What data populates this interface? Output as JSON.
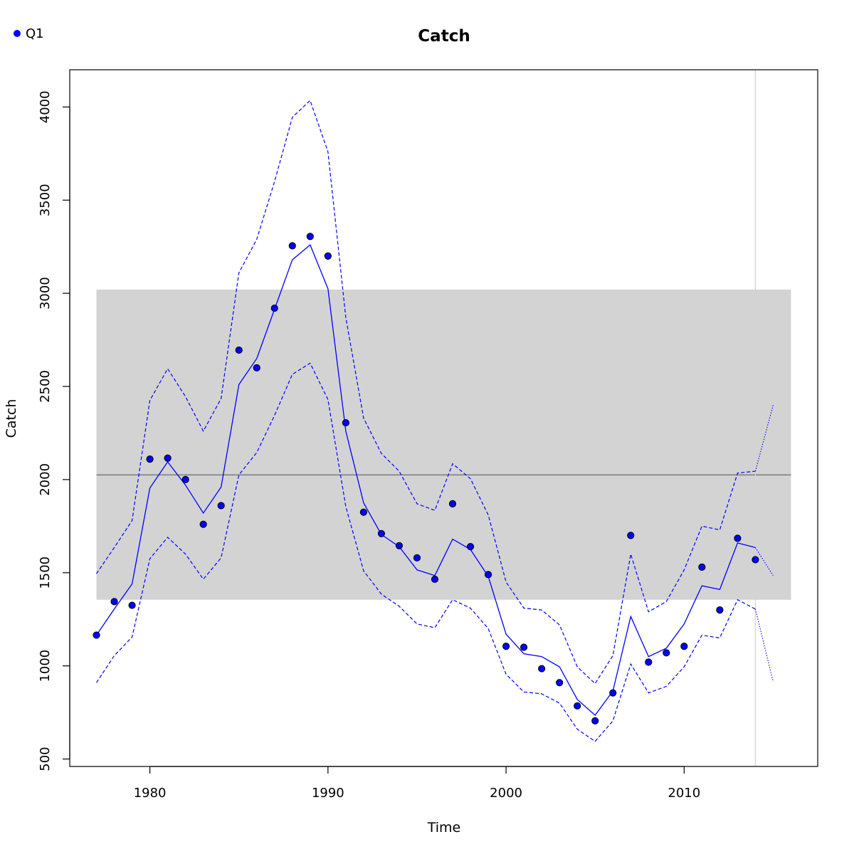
{
  "chart_data": {
    "type": "line",
    "title": "Catch",
    "xlabel": "Time",
    "ylabel": "Catch",
    "xlim": [
      1975.5,
      2017.5
    ],
    "ylim": [
      460,
      4200
    ],
    "x_ticks": [
      1980,
      1990,
      2000,
      2010
    ],
    "y_ticks": [
      500,
      1000,
      1500,
      2000,
      2500,
      3000,
      3500,
      4000
    ],
    "legend": {
      "position": "top-left",
      "entries": [
        {
          "label": "Q1",
          "color": "#0000ff",
          "marker": "filled-circle"
        }
      ]
    },
    "colors": {
      "series": "#0000ff",
      "band": "#d3d3d3",
      "mean_line": "#808080",
      "vline": "#d3d3d3",
      "point_outline": "#000000"
    },
    "reference_band": {
      "x": [
        1977,
        2016
      ],
      "y": [
        1355,
        3020
      ]
    },
    "mean_line": {
      "x": [
        1977,
        2016
      ],
      "y": 2025
    },
    "vertical_line": {
      "x": 2014
    },
    "observed": {
      "name": "Q1",
      "x": [
        1977,
        1978,
        1979,
        1980,
        1981,
        1982,
        1983,
        1984,
        1985,
        1986,
        1987,
        1988,
        1989,
        1990,
        1991,
        1992,
        1993,
        1994,
        1995,
        1996,
        1997,
        1998,
        1999,
        2000,
        2001,
        2002,
        2003,
        2004,
        2005,
        2006,
        2007,
        2008,
        2009,
        2010,
        2011,
        2012,
        2013,
        2014
      ],
      "y": [
        1165,
        1345,
        1325,
        2110,
        2115,
        2000,
        1760,
        1860,
        2695,
        2600,
        2920,
        3255,
        3305,
        3200,
        2305,
        1825,
        1710,
        1645,
        1580,
        1465,
        1870,
        1640,
        1490,
        1105,
        1100,
        985,
        910,
        785,
        705,
        855,
        1700,
        1020,
        1070,
        1105,
        1530,
        1300,
        1685,
        1570
      ]
    },
    "fitted": {
      "x": [
        1977,
        1978,
        1979,
        1980,
        1981,
        1982,
        1983,
        1984,
        1985,
        1986,
        1987,
        1988,
        1989,
        1990,
        1991,
        1992,
        1993,
        1994,
        1995,
        1996,
        1997,
        1998,
        1999,
        2000,
        2001,
        2002,
        2003,
        2004,
        2005,
        2006,
        2007,
        2008,
        2009,
        2010,
        2011,
        2012,
        2013,
        2014
      ],
      "y": [
        1165,
        1305,
        1440,
        1955,
        2095,
        1970,
        1820,
        1960,
        2510,
        2650,
        2915,
        3180,
        3260,
        3025,
        2260,
        1875,
        1705,
        1640,
        1515,
        1485,
        1680,
        1625,
        1480,
        1170,
        1065,
        1050,
        995,
        820,
        735,
        865,
        1265,
        1050,
        1095,
        1225,
        1430,
        1410,
        1660,
        1635
      ]
    },
    "upper": {
      "x": [
        1977,
        1978,
        1979,
        1980,
        1981,
        1982,
        1983,
        1984,
        1985,
        1986,
        1987,
        1988,
        1989,
        1990,
        1991,
        1992,
        1993,
        1994,
        1995,
        1996,
        1997,
        1998,
        1999,
        2000,
        2001,
        2002,
        2003,
        2004,
        2005,
        2006,
        2007,
        2008,
        2009,
        2010,
        2011,
        2012,
        2013,
        2014
      ],
      "y": [
        1495,
        1635,
        1780,
        2425,
        2595,
        2445,
        2260,
        2435,
        3110,
        3290,
        3600,
        3945,
        4035,
        3760,
        2870,
        2330,
        2140,
        2045,
        1870,
        1835,
        2085,
        2005,
        1810,
        1450,
        1310,
        1300,
        1220,
        995,
        905,
        1055,
        1600,
        1290,
        1345,
        1515,
        1750,
        1730,
        2035,
        2045
      ]
    },
    "lower": {
      "x": [
        1977,
        1978,
        1979,
        1980,
        1981,
        1982,
        1983,
        1984,
        1985,
        1986,
        1987,
        1988,
        1989,
        1990,
        1991,
        1992,
        1993,
        1994,
        1995,
        1996,
        1997,
        1998,
        1999,
        2000,
        2001,
        2002,
        2003,
        2004,
        2005,
        2006,
        2007,
        2008,
        2009,
        2010,
        2011,
        2012,
        2013,
        2014
      ],
      "y": [
        910,
        1055,
        1155,
        1575,
        1690,
        1600,
        1465,
        1580,
        2025,
        2145,
        2345,
        2565,
        2625,
        2430,
        1855,
        1510,
        1385,
        1320,
        1225,
        1205,
        1355,
        1310,
        1200,
        955,
        860,
        850,
        800,
        660,
        595,
        705,
        1010,
        855,
        890,
        995,
        1165,
        1150,
        1355,
        1305
      ]
    },
    "projection": {
      "x": [
        2014,
        2015
      ],
      "y": [
        1635,
        1485
      ],
      "upper": [
        2045,
        2400
      ],
      "lower": [
        1305,
        915
      ]
    }
  }
}
